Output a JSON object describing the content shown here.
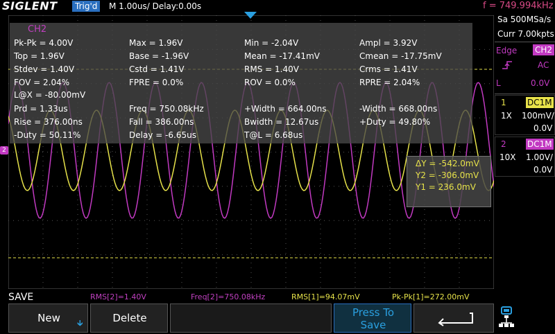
{
  "header": {
    "brand": "SIGLENT",
    "trigger_state": "Trig'd",
    "timebase": "M 1.00us/  Delay:0.00s",
    "frequency": "f = 749.994kHz"
  },
  "measurements": {
    "channel": "CH2",
    "rows": [
      [
        "Pk-Pk = 4.00V",
        "Max = 1.96V",
        "Min = -2.04V",
        "Ampl = 3.92V"
      ],
      [
        "Top = 1.96V",
        "Base = -1.96V",
        "Mean = -17.41mV",
        "Cmean = -17.75mV"
      ],
      [
        "Stdev = 1.40V",
        "Cstd = 1.41V",
        "RMS = 1.40V",
        "Crms = 1.41V"
      ],
      [
        "FOV = 2.04%",
        "FPRE = 0.0%",
        "ROV = 0.0%",
        "RPRE = 2.04%"
      ],
      [
        "L@X = -80.00mV",
        "",
        "",
        ""
      ],
      [
        "Prd = 1.33us",
        "Freq = 750.08kHz",
        "+Width = 664.00ns",
        "-Width = 668.00ns"
      ],
      [
        "Rise = 376.00ns",
        "Fall = 386.00ns",
        "Bwidth = 12.67us",
        "+Duty = 49.80%"
      ],
      [
        "-Duty = 50.11%",
        "Delay = -6.65us",
        "T@L = 6.68us",
        ""
      ]
    ]
  },
  "cursor": {
    "delta_y": "ΔY = -542.0mV",
    "y2": "Y2 = -306.0mV",
    "y1": "Y1 = 236.0mV"
  },
  "right_panel": {
    "sample_rate": "Sa 500MSa/s",
    "memory": "Curr 7.00kpts",
    "trigger_type": "Edge",
    "trigger_source": "CH2",
    "coupling": "AC",
    "level_label": "L",
    "level_value": "0.0V",
    "ch1": {
      "num": "1",
      "coupling": "DC1M",
      "probe": "1X",
      "scale": "100mV/",
      "offset": "0.0V"
    },
    "ch2": {
      "num": "2",
      "coupling": "DC1M",
      "probe": "10X",
      "scale": "1.00V/",
      "offset": "0.0V"
    }
  },
  "status": {
    "menu_title": "SAVE",
    "items": [
      {
        "text": "RMS[2]=1.40V",
        "color": "#c040c0"
      },
      {
        "text": "Freq[2]=750.08kHz",
        "color": "#c040c0"
      },
      {
        "text": "RMS[1]=94.07mV",
        "color": "#e6e24a"
      },
      {
        "text": "Pk-Pk[1]=272.00mV",
        "color": "#e6e24a"
      }
    ]
  },
  "softkeys": {
    "new": "New",
    "delete": "Delete",
    "press_to_save": "Press To Save",
    "back_icon": "return-arrow-icon"
  },
  "colors": {
    "ch1": "#e6e24a",
    "ch2": "#c23ac2",
    "accent": "#2a6fbf"
  }
}
